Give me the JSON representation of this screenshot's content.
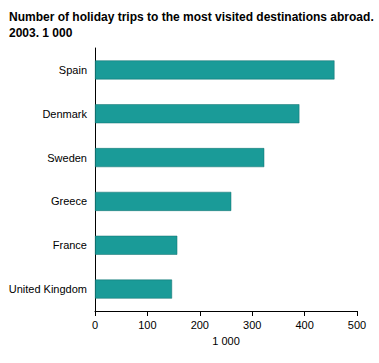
{
  "chart_data": {
    "type": "bar",
    "orientation": "horizontal",
    "title": "Number of holiday trips to the most visited destinations abroad. 2003. 1 000",
    "x_label": "1 000",
    "categories": [
      "Spain",
      "Denmark",
      "Sweden",
      "Greece",
      "France",
      "United Kingdom"
    ],
    "values": [
      457,
      390,
      323,
      260,
      157,
      147
    ],
    "color": "#1a9b98",
    "xlim": [
      0,
      500
    ],
    "xticks": [
      0,
      100,
      200,
      300,
      400,
      500
    ],
    "grid": false
  }
}
